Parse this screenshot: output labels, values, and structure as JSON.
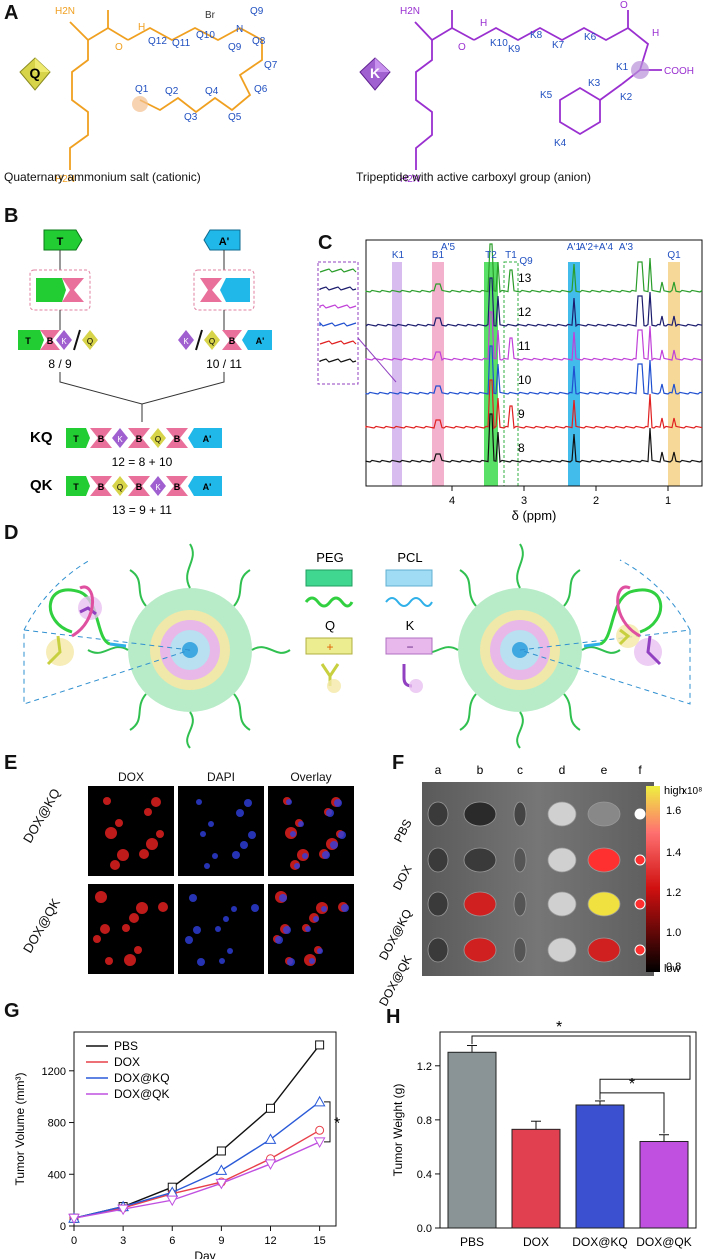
{
  "panels": {
    "A": "A",
    "B": "B",
    "C": "C",
    "D": "D",
    "E": "E",
    "F": "F",
    "G": "G",
    "H": "H"
  },
  "panelA": {
    "q_badge": "Q",
    "k_badge": "K",
    "q_caption": "Quaternary ammonium salt (cationic)",
    "k_caption": "Tripeptide with active carboxyl group (anion)",
    "q_labels": {
      "nh2_top": "H2N",
      "nh2_bot": "H2N",
      "nh": "H",
      "o": "O",
      "n": "N",
      "br": "Br",
      "q12": "Q12",
      "q11": "Q11",
      "q10": "Q10",
      "q9a": "Q9",
      "q9b": "Q9",
      "q8": "Q8",
      "q7": "Q7",
      "q6": "Q6",
      "q5": "Q5",
      "q4": "Q4",
      "q3": "Q3",
      "q2": "Q2",
      "q1": "Q1"
    },
    "k_labels": {
      "nh2_top": "H2N",
      "nh2_bot": "H2N",
      "k10": "K10",
      "k9": "K9",
      "k8": "K8",
      "k7": "K7",
      "k6": "K6",
      "k5": "K5",
      "k4": "K4",
      "k3": "K3",
      "k2": "K2",
      "k1": "K1",
      "cooh": "COOH",
      "o1": "O",
      "o2": "O",
      "nh1": "H",
      "nh2": "H"
    }
  },
  "panelB": {
    "t_block": "T",
    "a_block": "A'",
    "left_label": "8 / 9",
    "right_label": "10 / 11",
    "kq_label": "KQ",
    "kq_eq": "12 = 8 + 10",
    "qk_label": "QK",
    "qk_eq": "13 = 9 + 11",
    "seg": {
      "t": "T",
      "b": "B",
      "k": "K",
      "q": "Q",
      "a": "A'"
    }
  },
  "panelC": {
    "xlabel": "δ (ppm)",
    "ticks": [
      "4",
      "3",
      "2",
      "1"
    ],
    "peak_labels": [
      "K1",
      "B1",
      "A'5",
      "T2",
      "T1",
      "Q9",
      "A'1",
      "A'2+A'4",
      "A'3",
      "Q1"
    ],
    "traces": [
      "13",
      "12",
      "11",
      "10",
      "9",
      "8"
    ],
    "colors": [
      "#2a9d2a",
      "#1c1c6e",
      "#c040d8",
      "#2050d0",
      "#e02020",
      "#111111"
    ]
  },
  "panelD": {
    "legend": {
      "peg": "PEG",
      "pcl": "PCL",
      "q": "Q",
      "k": "K",
      "plus": "+",
      "minus": "−"
    }
  },
  "panelE": {
    "cols": [
      "DOX",
      "DAPI",
      "Overlay"
    ],
    "rows": [
      "DOX@KQ",
      "DOX@QK"
    ]
  },
  "panelF": {
    "cols": [
      "a",
      "b",
      "c",
      "d",
      "e",
      "f"
    ],
    "rows": [
      "PBS",
      "DOX",
      "DOX@KQ",
      "DOX@QK"
    ],
    "scale": {
      "high": "high",
      "low": "low",
      "unit": "x10⁸",
      "ticks": [
        "1.6",
        "1.4",
        "1.2",
        "1.0",
        "0.8"
      ]
    }
  },
  "chart_data": [
    {
      "type": "line",
      "xlabel": "Day",
      "ylabel": "Tumor Volume (mm³)",
      "x": [
        0,
        3,
        6,
        9,
        12,
        15
      ],
      "xlim": [
        0,
        16
      ],
      "ylim": [
        0,
        1500
      ],
      "yticks": [
        0,
        400,
        800,
        1200
      ],
      "xticks": [
        0,
        3,
        6,
        9,
        12,
        15
      ],
      "annotation": "*",
      "series": [
        {
          "name": "PBS",
          "color": "#111111",
          "marker": "square",
          "values": [
            60,
            150,
            300,
            580,
            910,
            1400
          ]
        },
        {
          "name": "DOX",
          "color": "#e8404a",
          "marker": "circle",
          "values": [
            60,
            140,
            250,
            340,
            520,
            740
          ]
        },
        {
          "name": "DOX@KQ",
          "color": "#2a5ad8",
          "marker": "triangle-up",
          "values": [
            60,
            150,
            260,
            430,
            670,
            960
          ]
        },
        {
          "name": "DOX@QK",
          "color": "#c050e0",
          "marker": "triangle-down",
          "values": [
            60,
            130,
            200,
            330,
            480,
            650
          ]
        }
      ]
    },
    {
      "type": "bar",
      "ylabel": "Tumor Weight (g)",
      "categories": [
        "PBS",
        "DOX",
        "DOX@KQ",
        "DOX@QK"
      ],
      "values": [
        1.3,
        0.73,
        0.91,
        0.64
      ],
      "errors": [
        0.05,
        0.06,
        0.03,
        0.05
      ],
      "colors": [
        "#8a9496",
        "#e04050",
        "#3a50d0",
        "#c050e0"
      ],
      "ylim": [
        0,
        1.45
      ],
      "yticks": [
        "0.0",
        "0.4",
        "0.8",
        "1.2"
      ],
      "annotation": "*"
    }
  ]
}
